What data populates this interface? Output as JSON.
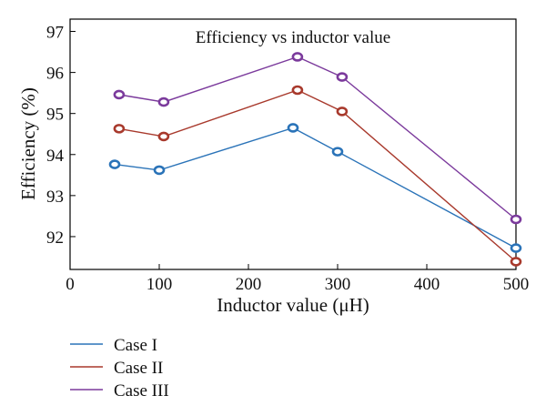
{
  "chart_data": {
    "type": "line",
    "title": "Efficiency vs inductor value",
    "xlabel": "Inductor value (μH)",
    "ylabel": "Efficiency (%)",
    "xlim": [
      0,
      500
    ],
    "ylim": [
      91.2,
      97.3
    ],
    "xticks": [
      0,
      100,
      200,
      300,
      400,
      500
    ],
    "yticks": [
      92,
      93,
      94,
      95,
      96,
      97
    ],
    "grid": false,
    "legend_position": "bottom-left-outside",
    "series": [
      {
        "name": "Case I",
        "color": "#2a73b8",
        "x": [
          50,
          100,
          250,
          300,
          500
        ],
        "y": [
          93.76,
          93.62,
          94.65,
          94.07,
          91.72
        ]
      },
      {
        "name": "Case II",
        "color": "#a8392c",
        "x": [
          55,
          105,
          255,
          305,
          500
        ],
        "y": [
          94.63,
          94.44,
          95.57,
          95.05,
          91.39
        ]
      },
      {
        "name": "Case III",
        "color": "#7b3a9c",
        "x": [
          55,
          105,
          255,
          305,
          500
        ],
        "y": [
          95.46,
          95.28,
          96.38,
          95.89,
          92.42
        ]
      }
    ]
  }
}
